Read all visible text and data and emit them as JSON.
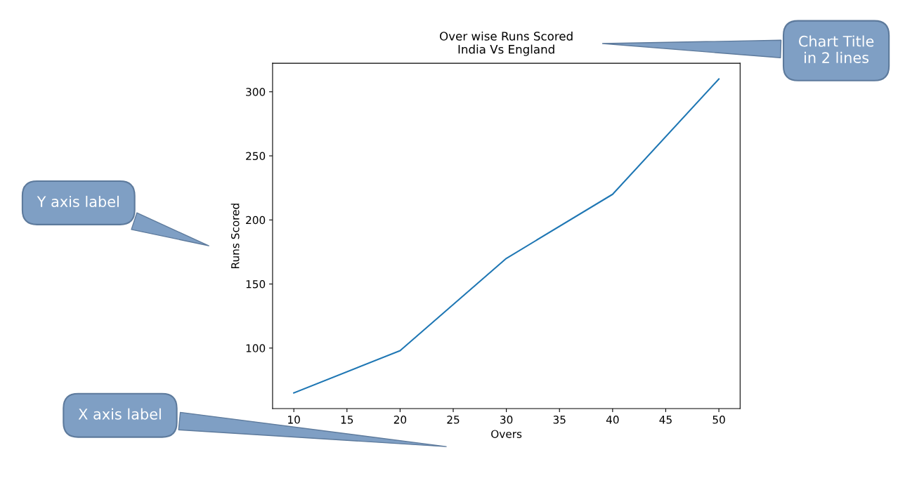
{
  "chart_data": {
    "type": "line",
    "title": "Over wise Runs Scored\nIndia Vs England",
    "xlabel": "Overs",
    "ylabel": "Runs Scored",
    "x": [
      10,
      20,
      30,
      40,
      50
    ],
    "series": [
      {
        "color": "#1f77b4",
        "values": [
          65,
          98,
          170,
          220,
          310
        ]
      }
    ],
    "xlim": [
      8,
      52
    ],
    "xticks": [
      10,
      15,
      20,
      25,
      30,
      35,
      40,
      45,
      50
    ],
    "ylim": [
      52.75,
      322.25
    ],
    "yticks": [
      100,
      150,
      200,
      250,
      300
    ],
    "grid": false,
    "marker": "none",
    "line_style": "solid",
    "annotations": [
      "Chart Title\nin 2 lines",
      "Y axis label",
      "X axis label"
    ]
  }
}
